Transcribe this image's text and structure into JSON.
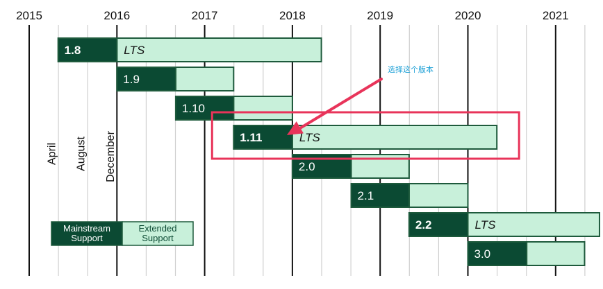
{
  "chart_data": {
    "type": "timeline",
    "title": "",
    "x_axis": {
      "years": [
        "2015",
        "2016",
        "2017",
        "2018",
        "2019",
        "2020",
        "2021"
      ],
      "month_markers": [
        "April",
        "August",
        "December"
      ]
    },
    "releases": [
      {
        "version": "1.8",
        "lts": true,
        "release": 2015.33,
        "mainstream_end": 2016.0,
        "extended_end": 2018.33
      },
      {
        "version": "1.9",
        "lts": false,
        "release": 2016.0,
        "mainstream_end": 2016.67,
        "extended_end": 2017.33
      },
      {
        "version": "1.10",
        "lts": false,
        "release": 2016.67,
        "mainstream_end": 2017.33,
        "extended_end": 2018.0
      },
      {
        "version": "1.11",
        "lts": true,
        "release": 2017.33,
        "mainstream_end": 2018.0,
        "extended_end": 2020.33
      },
      {
        "version": "2.0",
        "lts": false,
        "release": 2018.0,
        "mainstream_end": 2018.67,
        "extended_end": 2019.33
      },
      {
        "version": "2.1",
        "lts": false,
        "release": 2018.67,
        "mainstream_end": 2019.33,
        "extended_end": 2020.0
      },
      {
        "version": "2.2",
        "lts": true,
        "release": 2019.33,
        "mainstream_end": 2020.0,
        "extended_end": 2021.5
      },
      {
        "version": "3.0",
        "lts": false,
        "release": 2020.0,
        "mainstream_end": 2020.67,
        "extended_end": 2021.33
      }
    ],
    "lts_label": "LTS",
    "legend": {
      "mainstream": "Mainstream Support",
      "extended": "Extended Support",
      "placement": "bottom-left"
    },
    "annotation": {
      "text": "选择这个版本",
      "target_version": "1.11"
    }
  },
  "colors": {
    "mainstream": "#0b4a33",
    "extended": "#c8f0da",
    "border": "#1e5a3c",
    "gridline": "#111111",
    "subgridline": "#cfcfcf",
    "highlight": "#e8345a",
    "annotation_text": "#1a9fd6"
  }
}
